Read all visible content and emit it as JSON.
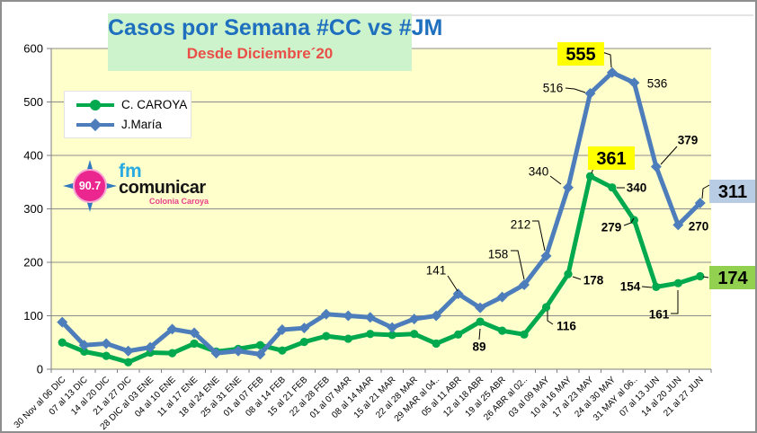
{
  "header": {
    "title": "Casos por Semana #CC vs #JM",
    "subtitle": "Desde Diciembre´20"
  },
  "logo": {
    "frequency": "90.7",
    "brand_top": "fm",
    "brand_main": "comunicar",
    "brand_sub": "Colonia Caroya"
  },
  "colors": {
    "title_text": "#1F6FBF",
    "subtitle_text": "#E94F47",
    "title_bg": "#CDF3CD",
    "plot_bg": "#FFFFCC",
    "grid": "#8C8C8C",
    "axis": "#7F7F7F",
    "frame": "#C9C9C9",
    "caroya": "#00A84E",
    "jmaria": "#4D7EBB",
    "highlight_yellow": "#FFFF00",
    "highlight_blue": "#B8CCE4",
    "highlight_green": "#92D050",
    "logo_star": "#3179BE",
    "logo_circle": "#EC268F",
    "logo_fm": "#29ABE2",
    "logo_main": "#151515",
    "logo_sub": "#E9408A"
  },
  "chart_data": {
    "type": "line",
    "title": "Casos por Semana #CC vs #JM",
    "subtitle": "Desde Diciembre´20",
    "xlabel": "",
    "ylabel": "",
    "ylim": [
      0,
      600
    ],
    "y_ticks": [
      0,
      100,
      200,
      300,
      400,
      500,
      600
    ],
    "grid": true,
    "legend_position": "top-left",
    "plot_bg": "#FFFFCC",
    "categories": [
      "30 Nov al 06 DIC",
      "07 al 13 DIC",
      "14 al 20 DIC",
      "21 al 27 DIC",
      "28 DIC al 03 ENE",
      "04 al 10 ENE",
      "11 al 17 ENE",
      "18 al 24 ENE",
      "25 al 31 ENE",
      "01 al 07 FEB",
      "08 al 14 FEB",
      "15 al 21 FEB",
      "22 al 28 FEB",
      "01 al 07 MAR",
      "08 al 14 MAR",
      "15 al 21 MAR",
      "22 al 28 MAR",
      "29 MAR al 04..",
      "05 al 11 ABR",
      "12 al 18 ABR",
      "19 al 25 ABR",
      "26 ABR al 02..",
      "03 al 09 MAY",
      "10 al 16 MAY",
      "17 al 23 MAY",
      "24 al 30 MAY",
      "31 MAY al 06..",
      "07 al 13 JUN",
      "14 al 20 JUN",
      "21 al 27 JUN"
    ],
    "series": [
      {
        "name": "C. CAROYA",
        "color": "#00A84E",
        "marker": "circle",
        "values": [
          50,
          33,
          25,
          13,
          31,
          30,
          48,
          33,
          38,
          45,
          35,
          51,
          62,
          57,
          66,
          64,
          66,
          48,
          65,
          89,
          72,
          65,
          116,
          178,
          361,
          340,
          279,
          154,
          161,
          174
        ]
      },
      {
        "name": "J.María",
        "color": "#4D7EBB",
        "marker": "diamond",
        "values": [
          88,
          45,
          48,
          34,
          41,
          75,
          68,
          30,
          34,
          28,
          74,
          77,
          103,
          100,
          97,
          78,
          94,
          100,
          141,
          115,
          135,
          158,
          212,
          340,
          516,
          555,
          536,
          379,
          270,
          311
        ]
      }
    ],
    "annotations": [
      {
        "series": "J.María",
        "text": "141",
        "index": 18,
        "label": [
          483,
          299
        ],
        "bold": false,
        "big": false,
        "bg": null,
        "leader": [
          [
            496,
            305
          ],
          [
            507,
            322
          ]
        ]
      },
      {
        "series": "J.María",
        "text": "158",
        "index": 21,
        "label": [
          552,
          281
        ],
        "bold": false,
        "big": false,
        "bg": null,
        "leader": [
          [
            566,
            277
          ],
          [
            574,
            277
          ],
          [
            581,
            309
          ]
        ]
      },
      {
        "series": "J.María",
        "text": "212",
        "index": 22,
        "label": [
          577,
          248
        ],
        "bold": false,
        "big": false,
        "bg": null,
        "leader": [
          [
            590,
            244
          ],
          [
            597,
            244
          ],
          [
            604,
            277
          ]
        ]
      },
      {
        "series": "J.María",
        "text": "340",
        "index": 23,
        "label": [
          597,
          189
        ],
        "bold": false,
        "big": false,
        "bg": null,
        "leader": [
          [
            610,
            194
          ],
          [
            622,
            203
          ]
        ]
      },
      {
        "series": "J.María",
        "text": "516",
        "index": 24,
        "label": [
          613,
          96
        ],
        "bold": false,
        "big": false,
        "bg": null,
        "leader": [
          [
            627,
            96
          ],
          [
            637,
            97
          ],
          [
            649,
            101
          ]
        ]
      },
      {
        "series": "J.María",
        "text": "555",
        "index": 25,
        "label": [
          644,
          58
        ],
        "bold": true,
        "big": true,
        "bg": "#FFFF00",
        "leader": [
          [
            668,
            56
          ],
          [
            677,
            59
          ],
          [
            678,
            73
          ]
        ]
      },
      {
        "series": "J.María",
        "text": "536",
        "index": 26,
        "label": [
          729,
          91
        ],
        "bold": false,
        "big": false,
        "bg": null,
        "leader": null
      },
      {
        "series": "J.María",
        "text": "379",
        "index": 27,
        "label": [
          763,
          154
        ],
        "bold": true,
        "big": false,
        "bg": null,
        "leader": [
          [
            751,
            161
          ],
          [
            733,
            181
          ]
        ]
      },
      {
        "series": "J.María",
        "text": "270",
        "index": 28,
        "label": [
          775,
          250
        ],
        "bold": true,
        "big": false,
        "bg": null,
        "leader": null
      },
      {
        "series": "J.María",
        "text": "311",
        "index": 29,
        "label": [
          813,
          211
        ],
        "bold": true,
        "big": true,
        "bg": "#B8CCE4",
        "leader": [
          [
            787,
            204
          ],
          [
            780,
            208
          ],
          [
            779,
            219
          ]
        ]
      },
      {
        "series": "C. CAROYA",
        "text": "89",
        "index": 19,
        "label": [
          531,
          384
        ],
        "bold": true,
        "big": false,
        "bg": null,
        "leader": [
          [
            531,
            376
          ],
          [
            532,
            364
          ]
        ]
      },
      {
        "series": "C. CAROYA",
        "text": "116",
        "index": 22,
        "label": [
          628,
          361
        ],
        "bold": true,
        "big": false,
        "bg": null,
        "leader": [
          [
            613,
            359
          ],
          [
            607,
            355
          ],
          [
            607,
            344
          ]
        ]
      },
      {
        "series": "C. CAROYA",
        "text": "178",
        "index": 23,
        "label": [
          658,
          310
        ],
        "bold": true,
        "big": false,
        "bg": null,
        "leader": [
          [
            644,
            309
          ],
          [
            635,
            306
          ]
        ]
      },
      {
        "series": "C. CAROYA",
        "text": "361",
        "index": 24,
        "label": [
          678,
          174
        ],
        "bold": true,
        "big": true,
        "bg": "#FFFF00",
        "leader": [
          [
            658,
            185
          ],
          [
            656,
            191
          ]
        ]
      },
      {
        "series": "C. CAROYA",
        "text": "340",
        "index": 25,
        "label": [
          706,
          207
        ],
        "bold": true,
        "big": false,
        "bg": null,
        "leader": [
          [
            693,
            207
          ],
          [
            684,
            207
          ]
        ]
      },
      {
        "series": "C. CAROYA",
        "text": "279",
        "index": 26,
        "label": [
          678,
          251
        ],
        "bold": true,
        "big": false,
        "bg": null,
        "leader": [
          [
            692,
            249
          ],
          [
            700,
            246
          ],
          [
            703,
            241
          ]
        ]
      },
      {
        "series": "C. CAROYA",
        "text": "154",
        "index": 27,
        "label": [
          699,
          317
        ],
        "bold": true,
        "big": false,
        "bg": null,
        "leader": [
          [
            712,
            317
          ],
          [
            723,
            318
          ]
        ]
      },
      {
        "series": "C. CAROYA",
        "text": "161",
        "index": 28,
        "label": [
          731,
          348
        ],
        "bold": true,
        "big": false,
        "bg": null,
        "leader": [
          [
            744,
            347
          ],
          [
            752,
            347
          ],
          [
            752,
            321
          ]
        ]
      },
      {
        "series": "C. CAROYA",
        "text": "174",
        "index": 29,
        "label": [
          813,
          307
        ],
        "bold": true,
        "big": true,
        "bg": "#92D050",
        "leader": [
          [
            780,
            306
          ],
          [
            786,
            307
          ]
        ]
      }
    ]
  }
}
